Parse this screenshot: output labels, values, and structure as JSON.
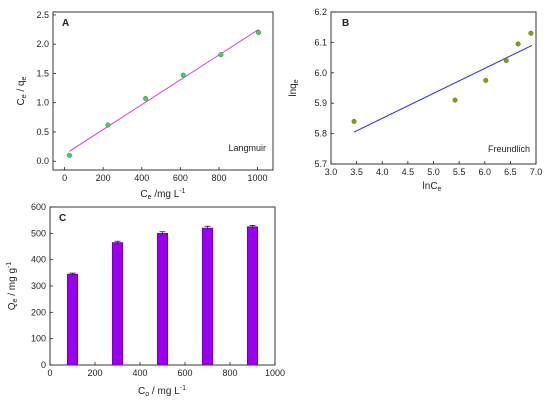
{
  "chart_data": [
    {
      "panel_label": "A",
      "type": "scatter",
      "xlabel": "C",
      "xlabel_sub": "e",
      "xlabel_unit": " /mg L",
      "xlabel_sup": "-1",
      "ylabel": "C",
      "ylabel_sub1": "e",
      "ylabel_mid": " / q",
      "ylabel_sub2": "e",
      "xlim": [
        -60,
        1080
      ],
      "ylim": [
        -0.15,
        2.55
      ],
      "xticks": [
        0,
        200,
        400,
        600,
        800,
        1000
      ],
      "yticks": [
        0.0,
        0.5,
        1.0,
        1.5,
        2.0,
        2.5
      ],
      "ytick_labels": [
        "0.0",
        "0.5",
        "1.0",
        "1.5",
        "2.0",
        "2.5"
      ],
      "points": [
        [
          25,
          0.1
        ],
        [
          225,
          0.62
        ],
        [
          420,
          1.07
        ],
        [
          615,
          1.47
        ],
        [
          810,
          1.82
        ],
        [
          1005,
          2.2
        ]
      ],
      "fit_line": [
        [
          25,
          0.17
        ],
        [
          1005,
          2.25
        ]
      ],
      "annotation": "Langmuir",
      "colors": {
        "points": "#3ad26a",
        "line": "#d838d8"
      }
    },
    {
      "panel_label": "B",
      "type": "scatter",
      "xlabel": "lnC",
      "xlabel_sub": "e",
      "ylabel": "lnq",
      "ylabel_sub": "e",
      "xlim": [
        3.0,
        7.0
      ],
      "ylim": [
        5.7,
        6.2
      ],
      "xticks": [
        3.0,
        3.5,
        4.0,
        4.5,
        5.0,
        5.5,
        6.0,
        6.5,
        7.0
      ],
      "xtick_labels": [
        "3.0",
        "3.5",
        "4.0",
        "4.5",
        "5.0",
        "5.5",
        "6.0",
        "6.5",
        "7.0"
      ],
      "yticks": [
        5.7,
        5.8,
        5.9,
        6.0,
        6.1,
        6.2
      ],
      "ytick_labels": [
        "5.7",
        "5.8",
        "5.9",
        "6.0",
        "6.1",
        "6.2"
      ],
      "points": [
        [
          3.45,
          5.84
        ],
        [
          5.42,
          5.91
        ],
        [
          6.02,
          5.975
        ],
        [
          6.42,
          6.04
        ],
        [
          6.65,
          6.095
        ],
        [
          6.9,
          6.13
        ]
      ],
      "fit_line": [
        [
          3.45,
          5.805
        ],
        [
          6.92,
          6.09
        ]
      ],
      "annotation": "Freundlich",
      "colors": {
        "points": "#8a9a1a",
        "line": "#2a2ad8"
      }
    },
    {
      "panel_label": "C",
      "type": "bar",
      "xlabel": "C",
      "xlabel_sub": "o",
      "xlabel_unit": " / mg L",
      "xlabel_sup": "-1",
      "ylabel": "Q",
      "ylabel_sub": "e",
      "ylabel_unit": " / mg g",
      "ylabel_sup": "-1",
      "xlim": [
        0,
        1000
      ],
      "ylim": [
        0,
        600
      ],
      "xticks": [
        0,
        200,
        400,
        600,
        800,
        1000
      ],
      "yticks": [
        0,
        100,
        200,
        300,
        400,
        500,
        600
      ],
      "x": [
        100,
        300,
        500,
        700,
        900
      ],
      "values": [
        345,
        465,
        500,
        520,
        525
      ],
      "errors": [
        4,
        5,
        6,
        7,
        5
      ],
      "bar_width": 100,
      "colors": {
        "bar": "#9a00ee",
        "edge": "#5a0090"
      }
    }
  ]
}
